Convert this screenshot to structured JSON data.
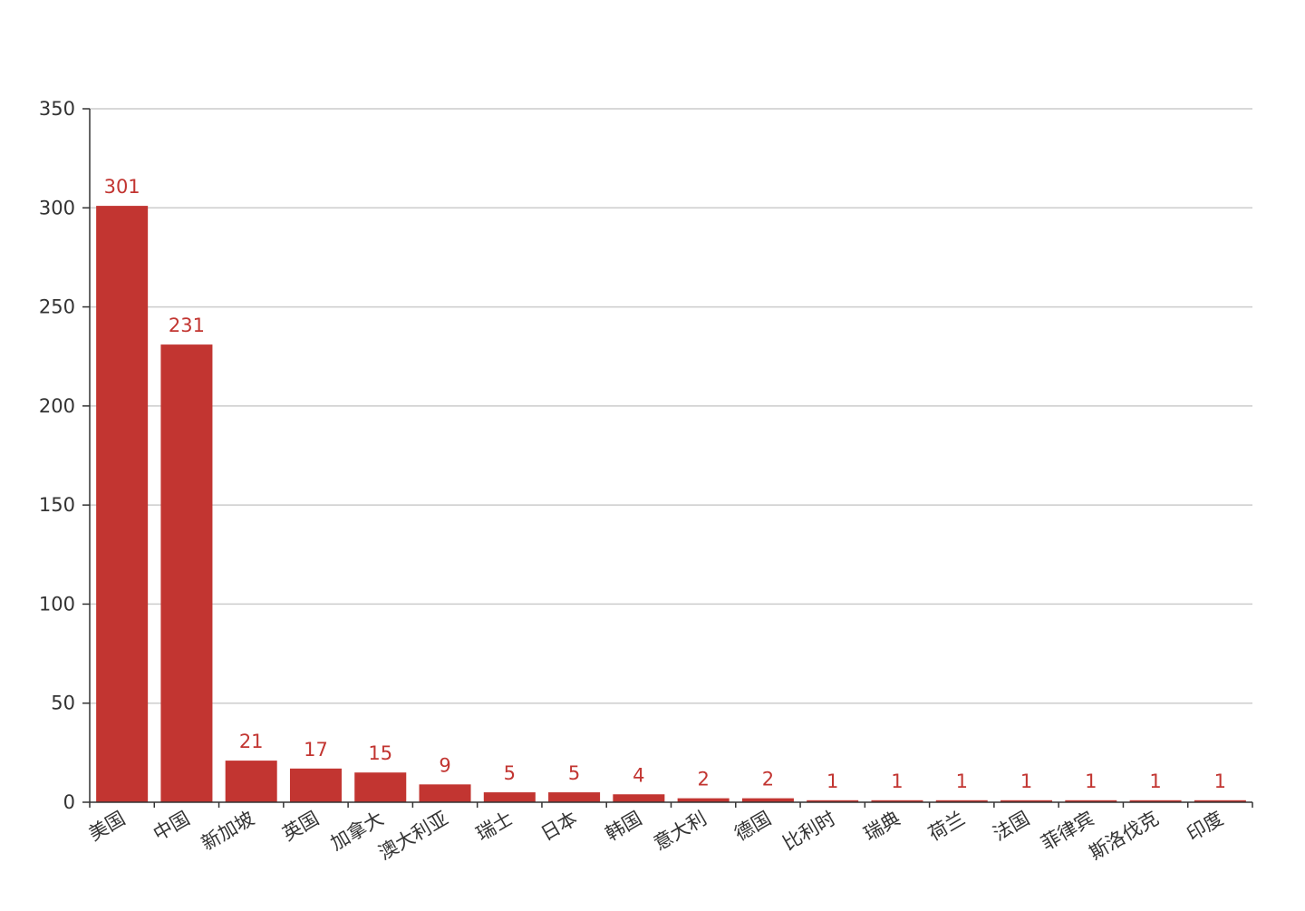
{
  "chart_data": {
    "type": "bar",
    "categories": [
      "美国",
      "中国",
      "新加坡",
      "英国",
      "加拿大",
      "澳大利亚",
      "瑞士",
      "日本",
      "韩国",
      "意大利",
      "德国",
      "比利时",
      "瑞典",
      "荷兰",
      "法国",
      "菲律宾",
      "斯洛伐克",
      "印度"
    ],
    "values": [
      301,
      231,
      21,
      17,
      15,
      9,
      5,
      5,
      4,
      2,
      2,
      1,
      1,
      1,
      1,
      1,
      1,
      1
    ],
    "y_ticks": [
      "0",
      "50",
      "100",
      "150",
      "200",
      "250",
      "300",
      "350"
    ],
    "ylim": [
      0,
      350
    ],
    "grid": true,
    "legend": "none",
    "bar_color": "#c23531",
    "label_color": "#c23531"
  }
}
